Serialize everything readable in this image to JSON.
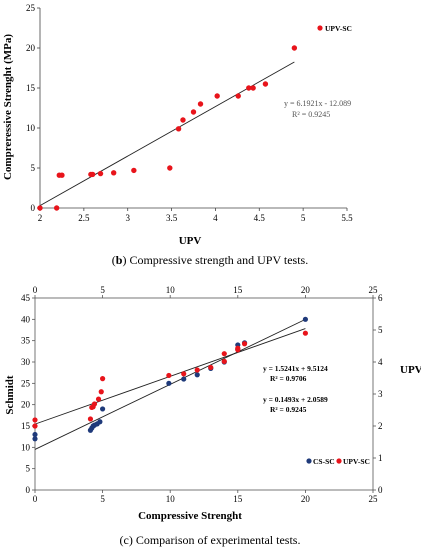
{
  "chart_data": [
    {
      "type": "scatter",
      "title": "",
      "xlabel": "UPV",
      "ylabel": "Compreressive Strenght (MPa)",
      "xlim": [
        2,
        5.5
      ],
      "ylim": [
        0,
        25
      ],
      "xticks": [
        "2",
        "2.5",
        "3",
        "3.5",
        "4",
        "4.5",
        "5",
        "5.5"
      ],
      "yticks": [
        "0",
        "5",
        "10",
        "15",
        "20",
        "25"
      ],
      "grid": false,
      "legend": "top-right",
      "series": [
        {
          "name": "UPV-SC",
          "color": "#e8141b",
          "points": [
            [
              2.0,
              0.0
            ],
            [
              2.19,
              0.0
            ],
            [
              2.22,
              4.1
            ],
            [
              2.25,
              4.1
            ],
            [
              2.58,
              4.2
            ],
            [
              2.6,
              4.2
            ],
            [
              2.69,
              4.3
            ],
            [
              2.84,
              4.4
            ],
            [
              3.07,
              4.7
            ],
            [
              3.48,
              5.0
            ],
            [
              3.58,
              9.9
            ],
            [
              3.63,
              11.0
            ],
            [
              3.75,
              12.0
            ],
            [
              3.83,
              13.0
            ],
            [
              4.02,
              14.0
            ],
            [
              4.26,
              14.0
            ],
            [
              4.38,
              15.0
            ],
            [
              4.43,
              15.0
            ],
            [
              4.57,
              15.5
            ],
            [
              4.9,
              20.0
            ]
          ]
        }
      ],
      "trendline": {
        "slope": 6.1921,
        "intercept": -12.089,
        "x_range": [
          2.0,
          4.9
        ],
        "equation": "y = 6.1921x - 12.089",
        "r2": "R² = 0.9245"
      },
      "caption_bold": "b",
      "caption_text": " Compressive strength and UPV tests."
    },
    {
      "type": "scatter",
      "title": "",
      "xlabel": "Compressive Strenght",
      "ylabel": "Schmidt",
      "y2label": "UPV",
      "xlim": [
        0,
        25
      ],
      "ylim": [
        0,
        45
      ],
      "y2lim": [
        0,
        6
      ],
      "xticks": [
        "0",
        "5",
        "10",
        "15",
        "20",
        "25"
      ],
      "xticks_top": [
        "0",
        "5",
        "10",
        "15",
        "20",
        "25"
      ],
      "yticks": [
        "0",
        "5",
        "10",
        "15",
        "20",
        "25",
        "30",
        "35",
        "40",
        "45"
      ],
      "y2ticks": [
        "0",
        "1",
        "2",
        "3",
        "4",
        "5",
        "6"
      ],
      "grid": false,
      "legend": "bottom-right",
      "series": [
        {
          "name": "CS-SC",
          "color": "#1f3a7a",
          "axis": "left",
          "points": [
            [
              0,
              12
            ],
            [
              0,
              13
            ],
            [
              4.1,
              14
            ],
            [
              4.2,
              14.5
            ],
            [
              4.3,
              15
            ],
            [
              4.4,
              15.2
            ],
            [
              4.6,
              15.5
            ],
            [
              4.8,
              16
            ],
            [
              5.0,
              19
            ],
            [
              9.9,
              25
            ],
            [
              11.0,
              26
            ],
            [
              12.0,
              27
            ],
            [
              13.0,
              28.5
            ],
            [
              14.0,
              30
            ],
            [
              15.0,
              33
            ],
            [
              15.0,
              34
            ],
            [
              15.5,
              34.5
            ],
            [
              20.0,
              40
            ]
          ]
        },
        {
          "name": "UPV-SC",
          "color": "#e8141b",
          "axis": "right",
          "points": [
            [
              0,
              2.0
            ],
            [
              0,
              2.19
            ],
            [
              4.1,
              2.22
            ],
            [
              4.2,
              2.58
            ],
            [
              4.3,
              2.6
            ],
            [
              4.4,
              2.69
            ],
            [
              4.7,
              2.84
            ],
            [
              4.9,
              3.07
            ],
            [
              5.0,
              3.48
            ],
            [
              9.9,
              3.58
            ],
            [
              11.0,
              3.63
            ],
            [
              12.0,
              3.75
            ],
            [
              13.0,
              3.83
            ],
            [
              14.0,
              4.02
            ],
            [
              14.0,
              4.26
            ],
            [
              15.0,
              4.38
            ],
            [
              15.0,
              4.43
            ],
            [
              15.5,
              4.57
            ],
            [
              20.0,
              4.9
            ]
          ]
        }
      ],
      "trendlines": [
        {
          "axis": "left",
          "slope": 1.5241,
          "intercept": 9.5124,
          "x_range": [
            0,
            20
          ],
          "equation": "y = 1.5241x + 9.5124",
          "r2": "R² = 0.9706"
        },
        {
          "axis": "right",
          "slope": 0.1493,
          "intercept": 2.0589,
          "x_range": [
            0,
            20
          ],
          "equation": "y = 0.1493x + 2.0589",
          "r2": "R² = 0.9245"
        }
      ],
      "caption_bold": "",
      "caption_text": "(c) Comparison of experimental tests."
    }
  ]
}
